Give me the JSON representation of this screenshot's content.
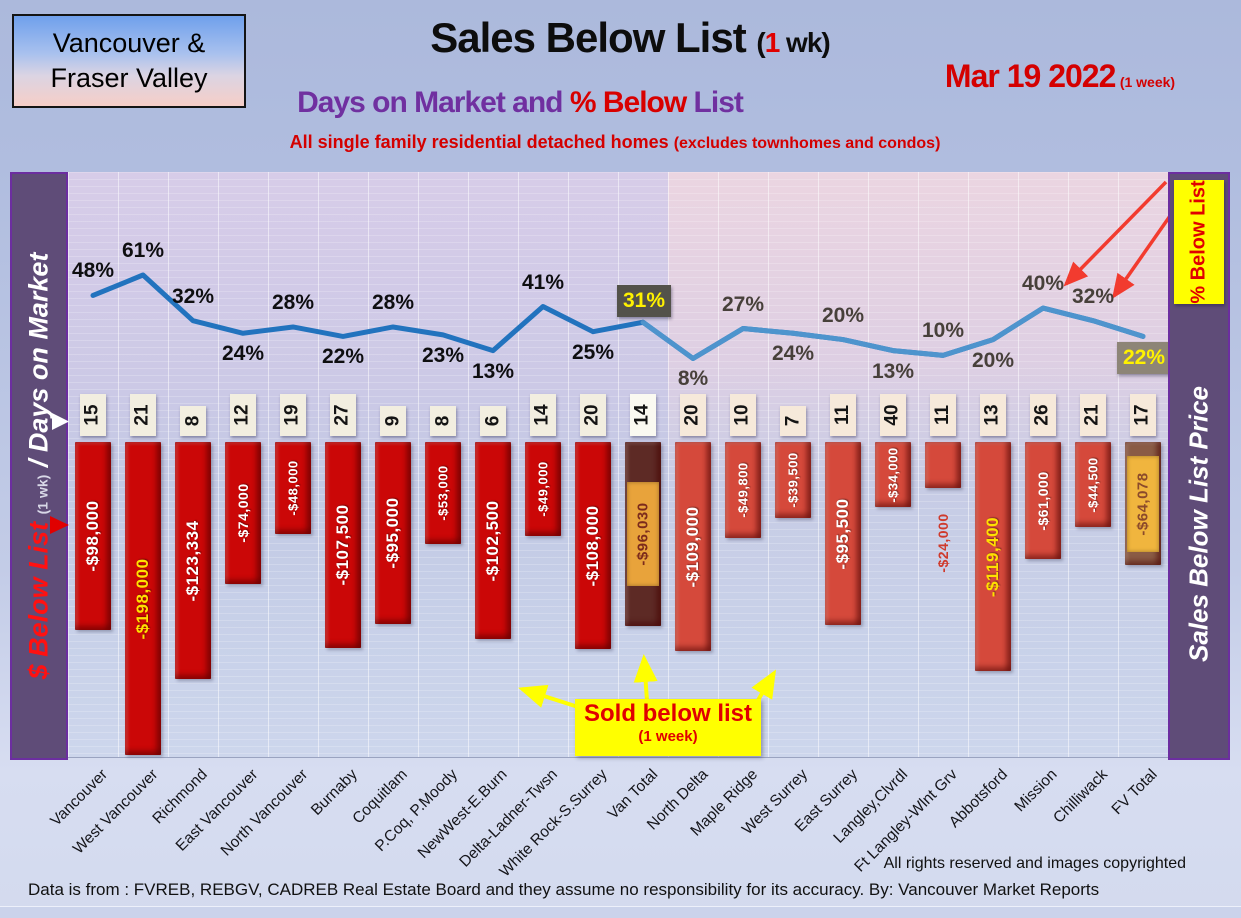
{
  "header": {
    "region_line1": "Vancouver &",
    "region_line2": "Fraser Valley"
  },
  "title": {
    "main": "Sales Below List",
    "paren_pre": "(",
    "paren_num": "1",
    "paren_post": " wk)"
  },
  "date": {
    "main": "Mar 19  2022",
    "suffix": "(1 week)"
  },
  "subtitle": {
    "p1": "Days on Market and ",
    "p2": "% Below",
    "p3": " List"
  },
  "tagline": {
    "main": "All single family residential detached homes ",
    "paren": "(excludes townhomes and condos)"
  },
  "left_axis": {
    "red": "$ Below List",
    "small": "(1 wk)",
    "white": "/ Days on Market"
  },
  "right_axis": {
    "badge": "% Below List",
    "label": "Sales Below List Price"
  },
  "callout": {
    "line1": "Sold below list",
    "line2": "(1 week)"
  },
  "footer": {
    "rights": "All rights reserved and  images copyrighted",
    "source": "Data is from : FVREB, REBGV, CADREB Real Estate Board and they assume no responsibility for its accuracy. By: Vancouver Market Reports"
  },
  "colors": {
    "bar_van": "#CB0707",
    "bar_fv": "#D5493B",
    "bar_van_total": "#5D2A25",
    "bar_fv_total": "#8A5B45",
    "amber_box": "#E8A33B",
    "gold_box": "#F0B53E",
    "amber_text": "#7C2B1C",
    "gold_text": "#8B4A2B",
    "line_van": "#2273BE",
    "line_fv": "#4E94CD",
    "box31_bg": "#53524A",
    "box22_bg": "#8D8577",
    "pct_van_text": "#0E0E10",
    "pct_fv_text": "#47403A",
    "yellow_label": "#FFE000",
    "outside_label": "#CF3A2C",
    "day_bg_van": "#F2EEE0",
    "day_bg_fv": "#F6E9DA",
    "day_bg_van_total": "#FAF9F1",
    "accent_red": "#D40000",
    "purple": "#7030A0",
    "annotation_yellow": "#FFFF00",
    "arrow_red": "#F23B2F"
  },
  "chart_data": {
    "type": "bar",
    "title": "Sales Below List (1 wk) - Days on Market and % Below List",
    "categories": [
      "Vancouver",
      "West Vancouver",
      "Richmond",
      "East Vancouver",
      "North Vancouver",
      "Burnaby",
      "Coquitlam",
      "P.Coq, P.Moody",
      "NewWest-E.Burn",
      "Delta-Ladner-Twsn",
      "White Rock-S.Surrey",
      "Van Total",
      "North Delta",
      "Maple Ridge",
      "West Surrey",
      "East Surrey",
      "Langley,Clvrdl",
      "Ft Langley-Wlnt Grv",
      "Abbotsford",
      "Mission",
      "Chilliwack",
      "FV Total"
    ],
    "split_after_index": 11,
    "legend_position": "none",
    "grid": true,
    "series": [
      {
        "name": "% Below List",
        "type": "line",
        "unit": "%",
        "values": [
          48,
          61,
          32,
          24,
          28,
          22,
          28,
          23,
          13,
          41,
          25,
          31,
          8,
          27,
          24,
          20,
          13,
          10,
          20,
          40,
          32,
          22
        ],
        "label_placement": [
          "above",
          "above",
          "above",
          "below",
          "above",
          "below",
          "above",
          "below",
          "below",
          "above",
          "below",
          "box",
          "below",
          "above",
          "below",
          "above",
          "below",
          "above",
          "below",
          "above",
          "above",
          "box"
        ],
        "boxed_indices": [
          11,
          21
        ]
      },
      {
        "name": "Days on Market",
        "type": "column-label",
        "unit": "days",
        "values": [
          15,
          21,
          8,
          12,
          19,
          27,
          9,
          8,
          6,
          14,
          20,
          14,
          20,
          10,
          7,
          11,
          40,
          11,
          13,
          26,
          21,
          17
        ]
      },
      {
        "name": "$ Below List (1 wk)",
        "type": "bar",
        "unit": "$",
        "values": [
          -98000,
          -198000,
          -123334,
          -74000,
          -48000,
          -107500,
          -95000,
          -53000,
          -102500,
          -49000,
          -108000,
          -96030,
          -109000,
          -49800,
          -39500,
          -95500,
          -34000,
          -24000,
          -119400,
          -61000,
          -44500,
          -64078
        ],
        "value_labels": [
          "-$98,000",
          "-$198,000",
          "-$123,334",
          "-$74,000",
          "-$48,000",
          "-$107,500",
          "-$95,000",
          "-$53,000",
          "-$102,500",
          "-$49,000",
          "-$108,000",
          "-$96,030",
          "-$109,000",
          "-$49,800",
          "-$39,500",
          "-$95,500",
          "-$34,000",
          "-$24,000",
          "-$119,400",
          "-$61,000",
          "-$44,500",
          "-$64,078"
        ],
        "total_indices": [
          11,
          21
        ],
        "yellow_label_indices": [
          1,
          18
        ],
        "outside_label_indices": [
          17
        ]
      }
    ]
  }
}
